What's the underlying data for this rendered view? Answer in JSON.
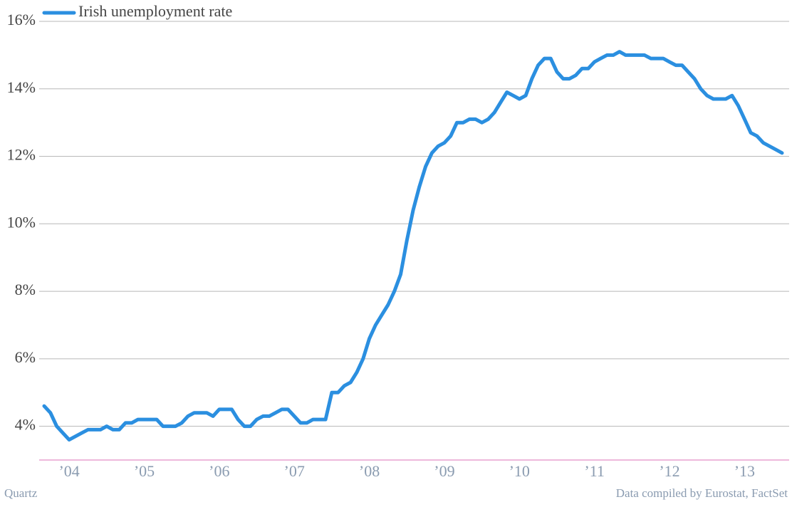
{
  "chart_data": {
    "type": "line",
    "series": [
      {
        "name": "Irish unemployment rate",
        "color": "#2b8fe0",
        "values": [
          4.6,
          4.4,
          4.0,
          3.8,
          3.6,
          3.7,
          3.8,
          3.9,
          3.9,
          3.9,
          4.0,
          3.9,
          3.9,
          4.1,
          4.1,
          4.2,
          4.2,
          4.2,
          4.2,
          4.0,
          4.0,
          4.0,
          4.1,
          4.3,
          4.4,
          4.4,
          4.4,
          4.3,
          4.5,
          4.5,
          4.5,
          4.2,
          4.0,
          4.0,
          4.2,
          4.3,
          4.3,
          4.4,
          4.5,
          4.5,
          4.3,
          4.1,
          4.1,
          4.2,
          4.2,
          4.2,
          5.0,
          5.0,
          5.2,
          5.3,
          5.6,
          6.0,
          6.6,
          7.0,
          7.3,
          7.6,
          8.0,
          8.5,
          9.5,
          10.4,
          11.1,
          11.7,
          12.1,
          12.3,
          12.4,
          12.6,
          13.0,
          13.0,
          13.1,
          13.1,
          13.0,
          13.1,
          13.3,
          13.6,
          13.9,
          13.8,
          13.7,
          13.8,
          14.3,
          14.7,
          14.9,
          14.9,
          14.5,
          14.3,
          14.3,
          14.4,
          14.6,
          14.6,
          14.8,
          14.9,
          15.0,
          15.0,
          15.1,
          15.0,
          15.0,
          15.0,
          15.0,
          14.9,
          14.9,
          14.9,
          14.8,
          14.7,
          14.7,
          14.5,
          14.3,
          14.0,
          13.8,
          13.7,
          13.7,
          13.7,
          13.8,
          13.5,
          13.1,
          12.7,
          12.6,
          12.4,
          12.3,
          12.2,
          12.1
        ]
      }
    ],
    "categories": [
      null,
      null,
      null,
      null,
      "’04",
      null,
      null,
      null,
      null,
      null,
      null,
      null,
      null,
      null,
      null,
      null,
      "’05",
      null,
      null,
      null,
      null,
      null,
      null,
      null,
      null,
      null,
      null,
      null,
      "’06",
      null,
      null,
      null,
      null,
      null,
      null,
      null,
      null,
      null,
      null,
      null,
      "’07",
      null,
      null,
      null,
      null,
      null,
      null,
      null,
      null,
      null,
      null,
      null,
      "’08",
      null,
      null,
      null,
      null,
      null,
      null,
      null,
      null,
      null,
      null,
      null,
      "’09",
      null,
      null,
      null,
      null,
      null,
      null,
      null,
      null,
      null,
      null,
      null,
      "’10",
      null,
      null,
      null,
      null,
      null,
      null,
      null,
      null,
      null,
      null,
      null,
      "’11",
      null,
      null,
      null,
      null,
      null,
      null,
      null,
      null,
      null,
      null,
      null,
      "’12",
      null,
      null,
      null,
      null,
      null,
      null,
      null,
      null,
      null,
      null,
      null,
      "’13",
      null,
      null,
      null,
      null,
      null,
      null
    ],
    "ylim": [
      3,
      16
    ],
    "yticks": [
      {
        "value": 4,
        "label": "4%"
      },
      {
        "value": 6,
        "label": "6%"
      },
      {
        "value": 8,
        "label": "8%"
      },
      {
        "value": 10,
        "label": "10%"
      },
      {
        "value": 12,
        "label": "12%"
      },
      {
        "value": 14,
        "label": "14%"
      },
      {
        "value": 16,
        "label": "16%"
      }
    ],
    "grid": true,
    "legend": "upper left",
    "credit": "Quartz",
    "source": "Data compiled by Eurostat, FactSet"
  }
}
